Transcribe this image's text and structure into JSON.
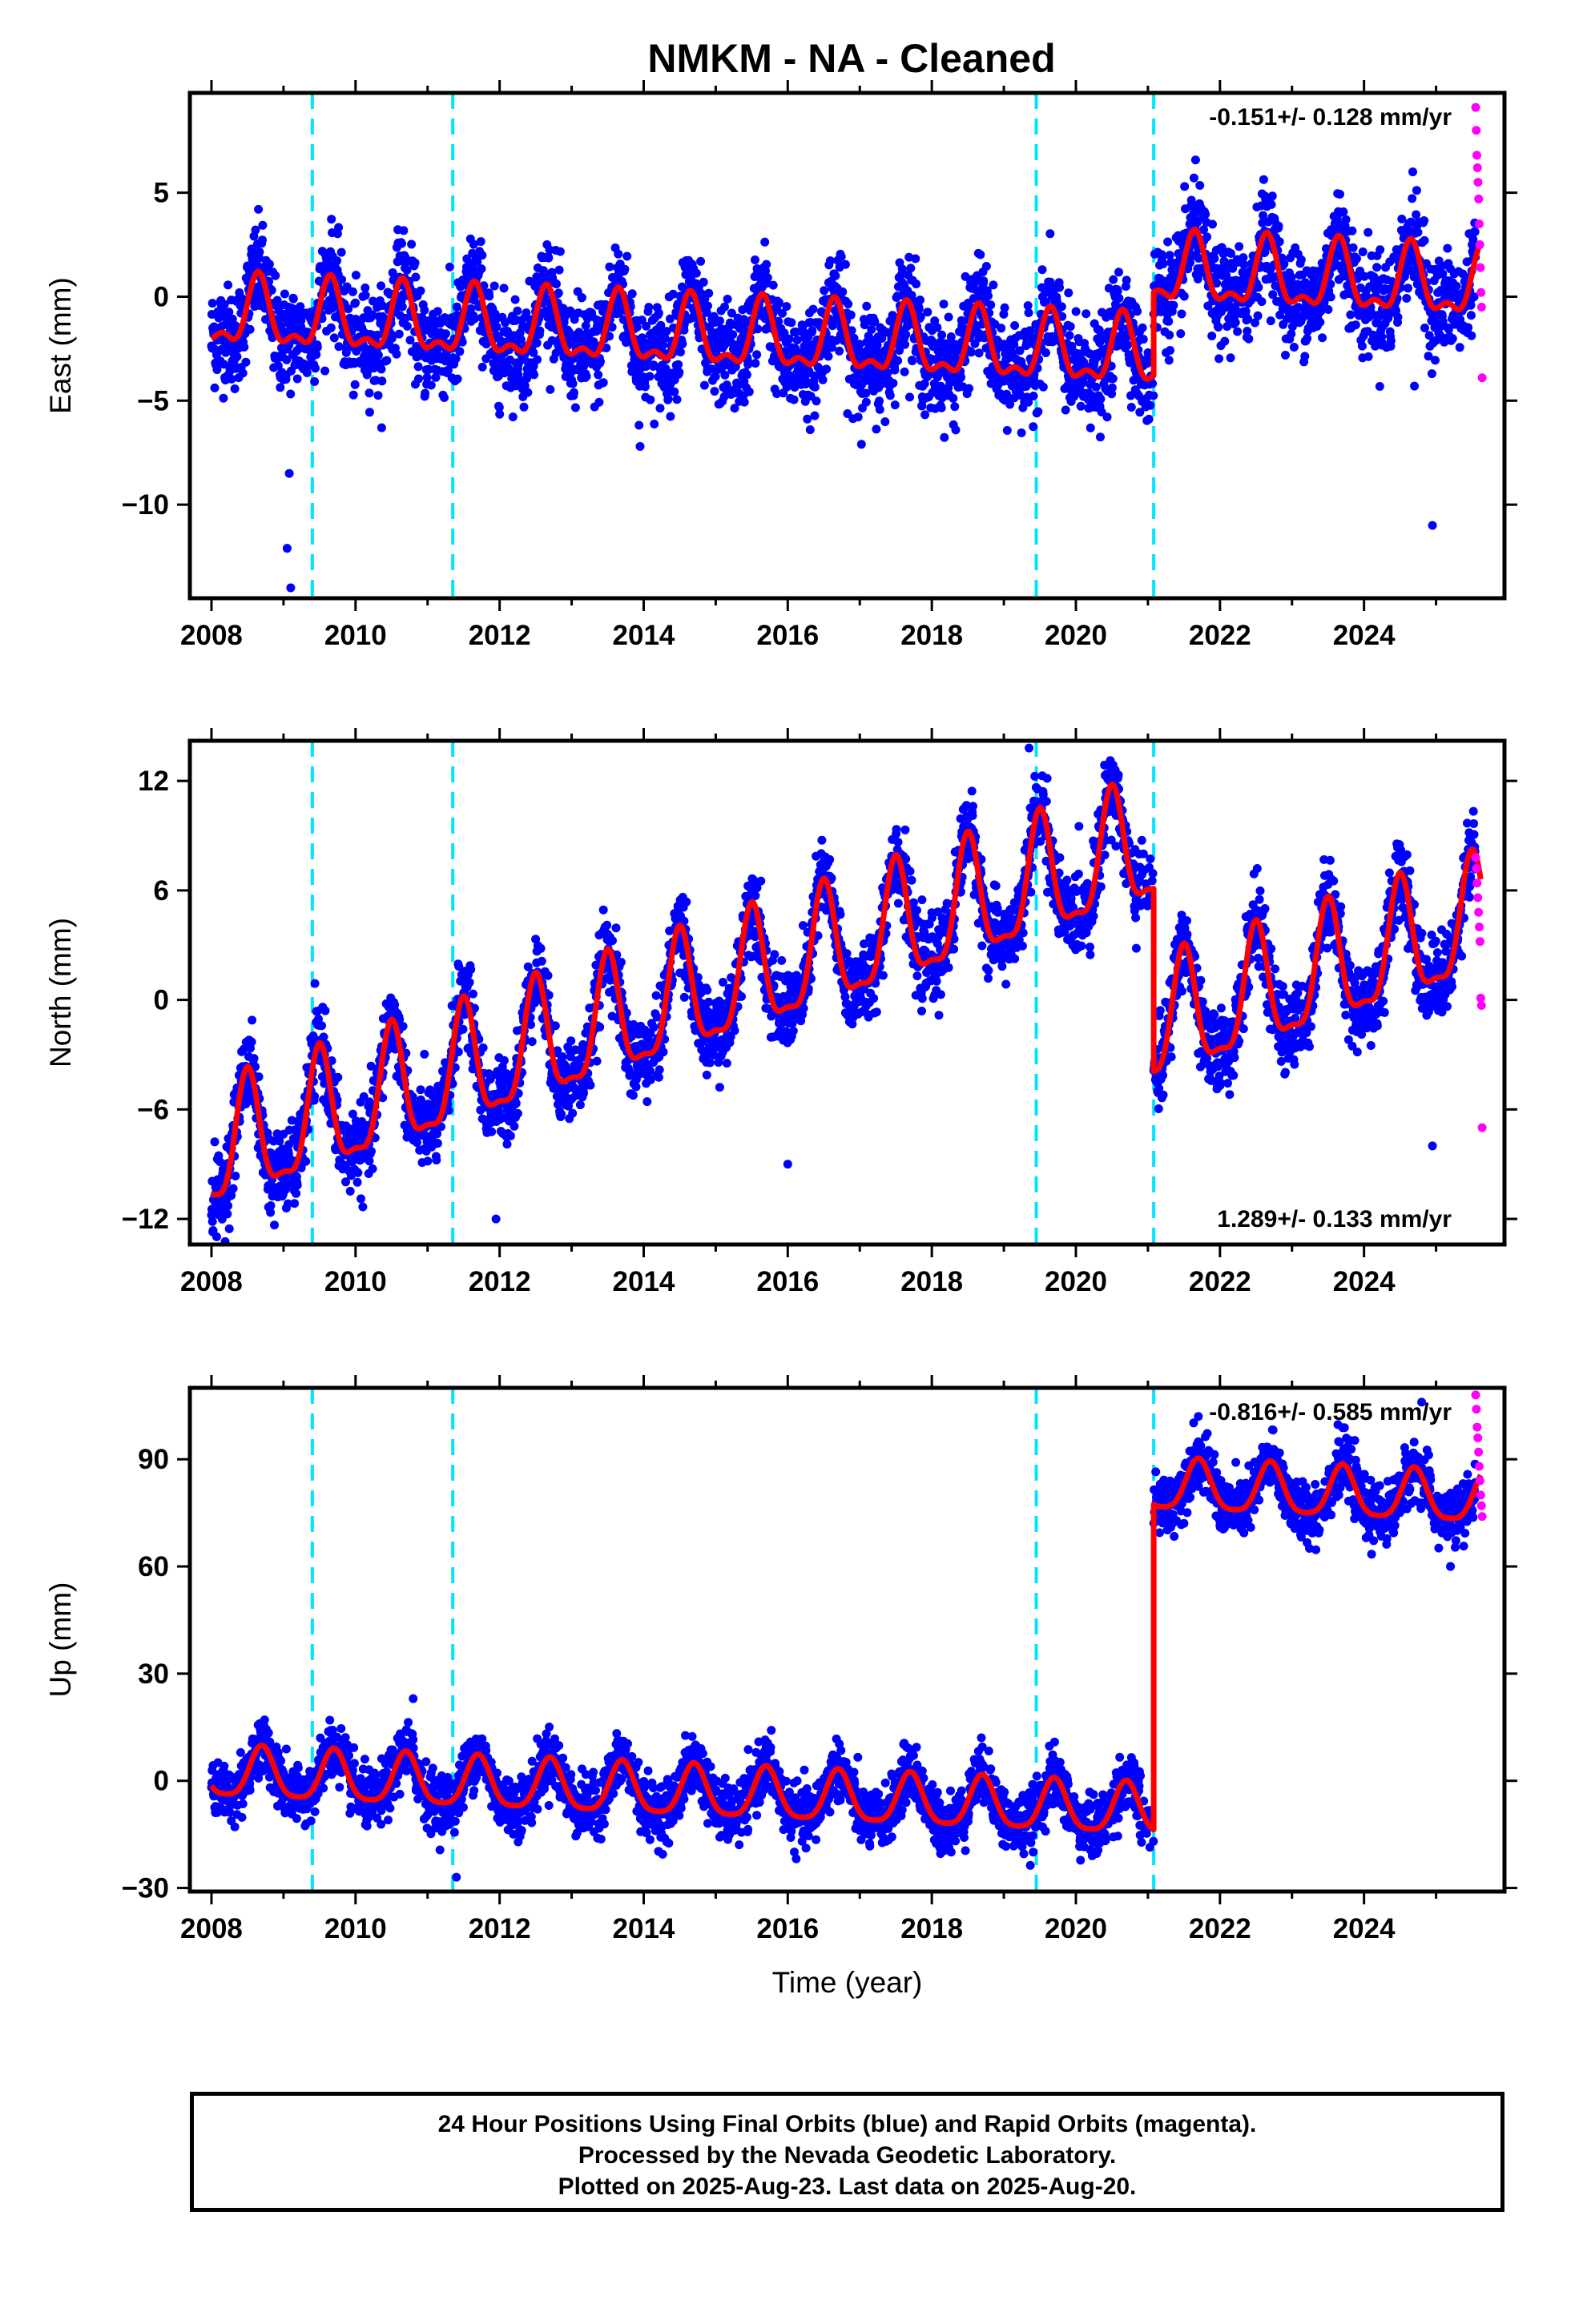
{
  "title": "NMKM  - NA - Cleaned",
  "footer": {
    "line1": "24 Hour Positions Using Final Orbits (blue) and Rapid Orbits (magenta).",
    "line2": "Processed by the Nevada Geodetic Laboratory.",
    "line3": "Plotted on 2025-Aug-23. Last data on 2025-Aug-20."
  },
  "colors": {
    "final_orbits": "#0000ff",
    "rapid_orbits": "#ff00ff",
    "model": "#ff0000",
    "events": "#00e5ff"
  },
  "chart_data": [
    {
      "type": "scatter",
      "name": "east",
      "ylabel": "East (mm)",
      "xlabel": "",
      "xlim": [
        2007.7,
        2025.95
      ],
      "ylim": [
        -14.5,
        9.8
      ],
      "xticks": [
        2008,
        2010,
        2012,
        2014,
        2016,
        2018,
        2020,
        2022,
        2024
      ],
      "yticks": [
        5,
        0,
        -5,
        -10
      ],
      "ytick_labels": [
        "5",
        "0",
        "−5",
        "−10"
      ],
      "rate_label": "-0.151+/- 0.128 mm/yr",
      "rate_position": "top-right",
      "event_lines": [
        2009.4,
        2011.35,
        2019.45,
        2021.08
      ],
      "model": {
        "trend": -0.151,
        "offset_before": -0.9,
        "annual_amp": 1.5,
        "phase_peak": 0.65,
        "semiannual_amp": 0.7,
        "steps": [
          {
            "t": 2021.08,
            "dy": 4.0
          }
        ]
      },
      "scatter_sd": 1.2,
      "outliers": [
        [
          2009.05,
          -12.1
        ],
        [
          2009.08,
          -8.5
        ],
        [
          2009.1,
          -14.0
        ],
        [
          2013.95,
          -7.2
        ],
        [
          2024.95,
          -11.0
        ],
        [
          2024.7,
          -4.3
        ]
      ],
      "rapid_range": [
        2025.55,
        2025.64
      ],
      "rapid_values": [
        9.1,
        8.0,
        6.8,
        6.2,
        5.5,
        4.7,
        3.5,
        2.5,
        1.4,
        0.2,
        -0.5,
        -3.9
      ]
    },
    {
      "type": "scatter",
      "name": "north",
      "ylabel": "North (mm)",
      "xlabel": "",
      "xlim": [
        2007.7,
        2025.95
      ],
      "ylim": [
        -13.4,
        14.2
      ],
      "xticks": [
        2008,
        2010,
        2012,
        2014,
        2016,
        2018,
        2020,
        2022,
        2024
      ],
      "yticks": [
        12,
        6,
        0,
        -6,
        -12
      ],
      "ytick_labels": [
        "12",
        "6",
        "0",
        "−6",
        "−12"
      ],
      "rate_label": "1.289+/- 0.133 mm/yr",
      "rate_position": "bottom-right",
      "event_lines": [
        2009.4,
        2011.35,
        2019.45,
        2021.08
      ],
      "model": {
        "trend": 1.289,
        "offset_before": -8.5,
        "annual_amp": 3.2,
        "phase_peak": 0.5,
        "semiannual_amp": 1.0,
        "steps": [
          {
            "t": 2021.08,
            "dy": -10.0
          }
        ]
      },
      "scatter_sd": 1.1,
      "outliers": [
        [
          2011.95,
          -12.0
        ],
        [
          2016.0,
          -9.0
        ],
        [
          2024.95,
          -8.0
        ],
        [
          2019.35,
          13.8
        ]
      ],
      "rapid_range": [
        2025.55,
        2025.64
      ],
      "rapid_values": [
        7.8,
        7.2,
        6.4,
        5.6,
        4.8,
        4.0,
        3.2,
        0.1,
        -0.3,
        -7.0
      ]
    },
    {
      "type": "scatter",
      "name": "up",
      "ylabel": "Up (mm)",
      "xlabel": "Time (year)",
      "xlim": [
        2007.7,
        2025.95
      ],
      "ylim": [
        -31,
        110
      ],
      "xticks": [
        2008,
        2010,
        2012,
        2014,
        2016,
        2018,
        2020,
        2022,
        2024
      ],
      "yticks": [
        90,
        60,
        30,
        0,
        -30
      ],
      "ytick_labels": [
        "90",
        "60",
        "30",
        "0",
        "−30"
      ],
      "rate_label": "-0.816+/- 0.585 mm/yr",
      "rate_position": "top-right",
      "event_lines": [
        2009.4,
        2011.35,
        2019.45,
        2021.08
      ],
      "model": {
        "trend": -0.816,
        "offset_before": 2.0,
        "annual_amp": 7.0,
        "phase_peak": 0.7,
        "semiannual_amp": 1.5,
        "steps": [
          {
            "t": 2021.08,
            "dy": 91.0
          }
        ]
      },
      "scatter_sd": 4.0,
      "outliers": [
        [
          2011.4,
          -27.0
        ],
        [
          2010.8,
          23.0
        ],
        [
          2025.2,
          60.0
        ],
        [
          2021.7,
          102.0
        ],
        [
          2024.8,
          106.0
        ]
      ],
      "rapid_range": [
        2025.55,
        2025.64
      ],
      "rapid_values": [
        108,
        104,
        99,
        96,
        92,
        88,
        84,
        80,
        77,
        74
      ]
    }
  ]
}
